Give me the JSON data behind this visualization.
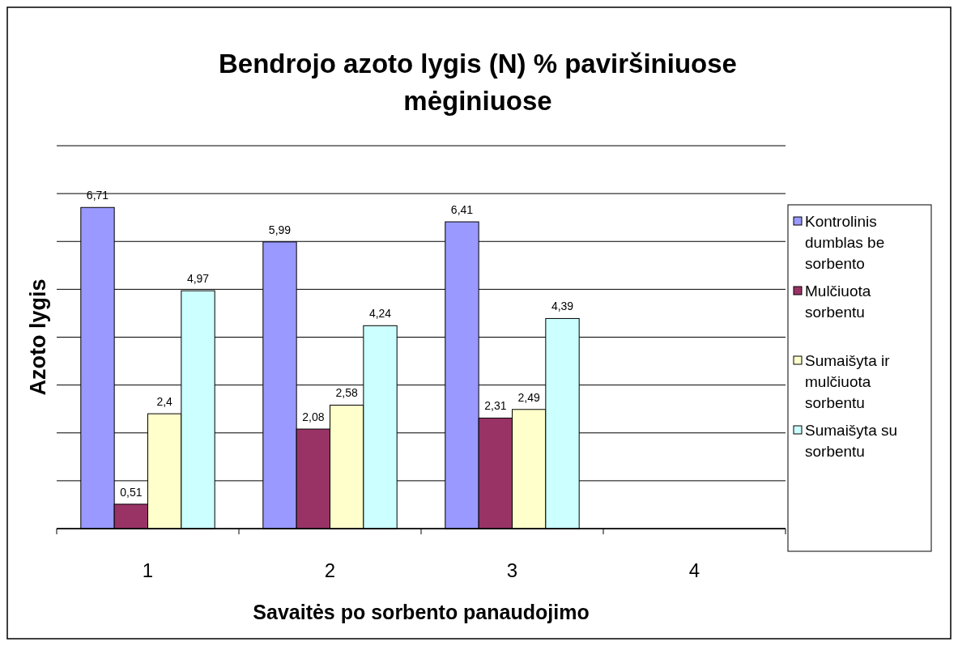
{
  "chart_data": {
    "type": "bar",
    "title": "Bendrojo azoto lygis (N) % paviršiniuose mėginiuose",
    "xlabel": "Savaitės po sorbento panaudojimo",
    "ylabel": "Azoto lygis",
    "categories": [
      "1",
      "2",
      "3",
      "4"
    ],
    "ylim": [
      0,
      8
    ],
    "yticks": [
      {
        "value": 0,
        "label": null
      },
      {
        "value": 1,
        "label": null
      },
      {
        "value": 2,
        "label": null
      },
      {
        "value": 3,
        "label": null
      },
      {
        "value": 4,
        "label": null
      },
      {
        "value": 5,
        "label": null
      },
      {
        "value": 6,
        "label": null
      },
      {
        "value": 7,
        "label": null
      },
      {
        "value": 8,
        "label": null
      }
    ],
    "grid": "y",
    "legend": "right",
    "tick_labels": "x",
    "series": [
      {
        "name": "Kontrolinis dumblas be sorbento",
        "color": "#9999ff",
        "values": [
          6.71,
          5.99,
          6.41,
          null
        ],
        "value_labels": [
          "6,71",
          "5,99",
          "6,41",
          null
        ]
      },
      {
        "name": "Mulčiuota sorbentu",
        "color": "#993366",
        "values": [
          0.51,
          2.08,
          2.31,
          null
        ],
        "value_labels": [
          "0,51",
          "2,08",
          "2,31",
          null
        ]
      },
      {
        "name": "Sumaišyta ir mulčiuota sorbentu",
        "color": "#ffffcc",
        "values": [
          2.4,
          2.58,
          2.49,
          null
        ],
        "value_labels": [
          "2,4",
          "2,58",
          "2,49",
          null
        ]
      },
      {
        "name": "Sumaišyta su sorbentu",
        "color": "#ccffff",
        "values": [
          4.97,
          4.24,
          4.39,
          null
        ],
        "value_labels": [
          "4,97",
          "4,24",
          "4,39",
          null
        ]
      }
    ]
  }
}
